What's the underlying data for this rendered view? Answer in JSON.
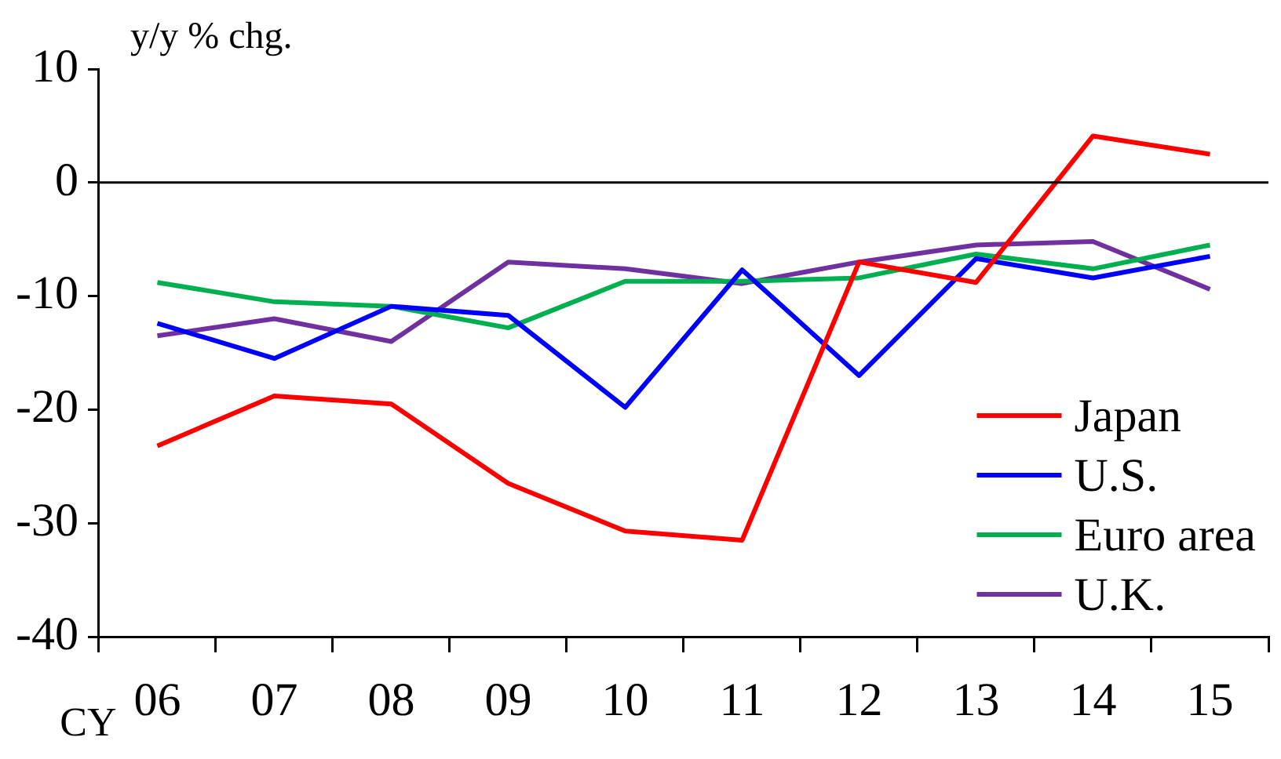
{
  "chart_data": {
    "type": "line",
    "ylabel": "y/y % chg.",
    "xlabel": "CY",
    "categories": [
      "06",
      "07",
      "08",
      "09",
      "10",
      "11",
      "12",
      "13",
      "14",
      "15"
    ],
    "series": [
      {
        "name": "Japan",
        "color": "#ff0000",
        "values": [
          -23.2,
          -18.8,
          -19.5,
          -26.5,
          -30.7,
          -31.5,
          -7,
          -8.8,
          4.1,
          2.5
        ]
      },
      {
        "name": "U.S.",
        "color": "#0000ff",
        "values": [
          -12.4,
          -15.5,
          -10.9,
          -11.7,
          -19.8,
          -7.7,
          -17,
          -6.7,
          -8.4,
          -6.5
        ]
      },
      {
        "name": "Euro area",
        "color": "#00b050",
        "values": [
          -8.8,
          -10.5,
          -10.9,
          -12.8,
          -8.7,
          -8.7,
          -8.4,
          -6.3,
          -7.6,
          -5.5
        ]
      },
      {
        "name": "U.K.",
        "color": "#7030a0",
        "values": [
          -13.5,
          -12,
          -14,
          -7,
          -7.6,
          -8.9,
          -7,
          -5.5,
          -5.2,
          -9.4
        ]
      }
    ],
    "ylim": [
      -40,
      10
    ],
    "yticks": [
      -40,
      -30,
      -20,
      -10,
      0,
      10
    ],
    "ref_lines": [
      {
        "axis": "y",
        "value": 0,
        "color": "#000000"
      }
    ],
    "legend": "bottom right",
    "grid": false,
    "marker": "none",
    "line_style": "solid"
  }
}
